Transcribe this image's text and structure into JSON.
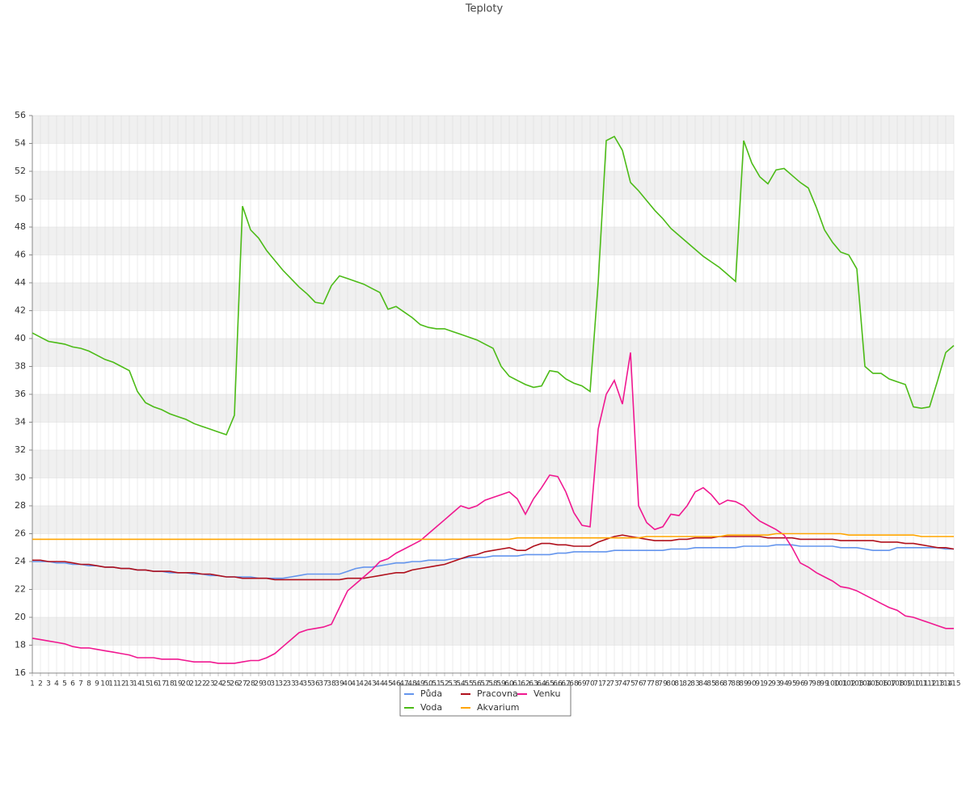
{
  "chart_data": {
    "type": "line",
    "title": "Teploty",
    "x": [
      1,
      2,
      3,
      4,
      5,
      6,
      7,
      8,
      9,
      10,
      11,
      12,
      13,
      14,
      15,
      16,
      17,
      18,
      19,
      20,
      21,
      22,
      23,
      24,
      25,
      26,
      27,
      28,
      29,
      30,
      31,
      32,
      33,
      34,
      35,
      36,
      37,
      38,
      39,
      40,
      41,
      42,
      43,
      44,
      45,
      46,
      47,
      48,
      49,
      50,
      51,
      52,
      53,
      54,
      55,
      56,
      57,
      58,
      59,
      60,
      61,
      62,
      63,
      64,
      65,
      66,
      67,
      68,
      69,
      70,
      71,
      72,
      73,
      74,
      75,
      76,
      77,
      78,
      79,
      80,
      81,
      82,
      83,
      84,
      85,
      86,
      87,
      88,
      89,
      90,
      91,
      92,
      93,
      94,
      95,
      96,
      97,
      98,
      99,
      100,
      101,
      102,
      103,
      104,
      105,
      106,
      107,
      108,
      109,
      110,
      111,
      112,
      113,
      114,
      115
    ],
    "xlim": [
      1,
      115
    ],
    "ylim": [
      16,
      56
    ],
    "yticks": [
      16,
      18,
      20,
      22,
      24,
      26,
      28,
      30,
      32,
      34,
      36,
      38,
      40,
      42,
      44,
      46,
      48,
      50,
      52,
      54,
      56
    ],
    "grid": true,
    "band_color": "#f0f0f0",
    "legend": "bottom",
    "series": [
      {
        "name": "Půda",
        "color": "#6495ed",
        "values": [
          24.0,
          24.0,
          24.0,
          23.9,
          23.9,
          23.8,
          23.8,
          23.7,
          23.7,
          23.6,
          23.6,
          23.5,
          23.5,
          23.4,
          23.4,
          23.3,
          23.3,
          23.2,
          23.2,
          23.2,
          23.1,
          23.1,
          23.0,
          23.0,
          22.9,
          22.9,
          22.9,
          22.9,
          22.8,
          22.8,
          22.8,
          22.8,
          22.9,
          23.0,
          23.1,
          23.1,
          23.1,
          23.1,
          23.1,
          23.3,
          23.5,
          23.6,
          23.6,
          23.7,
          23.8,
          23.9,
          23.9,
          24.0,
          24.0,
          24.1,
          24.1,
          24.1,
          24.2,
          24.2,
          24.3,
          24.3,
          24.3,
          24.4,
          24.4,
          24.4,
          24.4,
          24.5,
          24.5,
          24.5,
          24.5,
          24.6,
          24.6,
          24.7,
          24.7,
          24.7,
          24.7,
          24.7,
          24.8,
          24.8,
          24.8,
          24.8,
          24.8,
          24.8,
          24.8,
          24.9,
          24.9,
          24.9,
          25.0,
          25.0,
          25.0,
          25.0,
          25.0,
          25.0,
          25.1,
          25.1,
          25.1,
          25.1,
          25.2,
          25.2,
          25.2,
          25.1,
          25.1,
          25.1,
          25.1,
          25.1,
          25.0,
          25.0,
          25.0,
          24.9,
          24.8,
          24.8,
          24.8,
          25.0,
          25.0,
          25.0,
          25.0,
          25.0,
          25.0,
          24.9,
          24.9
        ]
      },
      {
        "name": "Pracovna",
        "color": "#b0101c",
        "values": [
          24.1,
          24.1,
          24.0,
          24.0,
          24.0,
          23.9,
          23.8,
          23.8,
          23.7,
          23.6,
          23.6,
          23.5,
          23.5,
          23.4,
          23.4,
          23.3,
          23.3,
          23.3,
          23.2,
          23.2,
          23.2,
          23.1,
          23.1,
          23.0,
          22.9,
          22.9,
          22.8,
          22.8,
          22.8,
          22.8,
          22.7,
          22.7,
          22.7,
          22.7,
          22.7,
          22.7,
          22.7,
          22.7,
          22.7,
          22.8,
          22.8,
          22.8,
          22.9,
          23.0,
          23.1,
          23.2,
          23.2,
          23.4,
          23.5,
          23.6,
          23.7,
          23.8,
          24.0,
          24.2,
          24.4,
          24.5,
          24.7,
          24.8,
          24.9,
          25.0,
          24.8,
          24.8,
          25.1,
          25.3,
          25.3,
          25.2,
          25.2,
          25.1,
          25.1,
          25.1,
          25.4,
          25.6,
          25.8,
          25.9,
          25.8,
          25.7,
          25.6,
          25.5,
          25.5,
          25.5,
          25.6,
          25.6,
          25.7,
          25.7,
          25.7,
          25.8,
          25.8,
          25.8,
          25.8,
          25.8,
          25.8,
          25.7,
          25.7,
          25.7,
          25.7,
          25.6,
          25.6,
          25.6,
          25.6,
          25.6,
          25.5,
          25.5,
          25.5,
          25.5,
          25.5,
          25.4,
          25.4,
          25.4,
          25.3,
          25.3,
          25.2,
          25.1,
          25.0,
          25.0,
          24.9
        ]
      },
      {
        "name": "Venku",
        "color": "#f01890",
        "values": [
          18.5,
          18.4,
          18.3,
          18.2,
          18.1,
          17.9,
          17.8,
          17.8,
          17.7,
          17.6,
          17.5,
          17.4,
          17.3,
          17.1,
          17.1,
          17.1,
          17.0,
          17.0,
          17.0,
          16.9,
          16.8,
          16.8,
          16.8,
          16.7,
          16.7,
          16.7,
          16.8,
          16.9,
          16.9,
          17.1,
          17.4,
          17.9,
          18.4,
          18.9,
          19.1,
          19.2,
          19.3,
          19.5,
          20.7,
          21.9,
          22.4,
          22.9,
          23.4,
          24.0,
          24.2,
          24.6,
          24.9,
          25.2,
          25.5,
          26.0,
          26.5,
          27.0,
          27.5,
          28.0,
          27.8,
          28.0,
          28.4,
          28.6,
          28.8,
          29.0,
          28.5,
          27.4,
          28.5,
          29.3,
          30.2,
          30.1,
          29.0,
          27.5,
          26.6,
          26.5,
          33.5,
          36.0,
          37.0,
          35.3,
          39.0,
          28.0,
          26.8,
          26.3,
          26.5,
          27.4,
          27.3,
          28.0,
          29.0,
          29.3,
          28.8,
          28.1,
          28.4,
          28.3,
          28.0,
          27.4,
          26.9,
          26.6,
          26.3,
          25.9,
          25.0,
          23.9,
          23.6,
          23.2,
          22.9,
          22.6,
          22.2,
          22.1,
          21.9,
          21.6,
          21.3,
          21.0,
          20.7,
          20.5,
          20.1,
          20.0,
          19.8,
          19.6,
          19.4,
          19.2,
          19.2
        ]
      },
      {
        "name": "Voda",
        "color": "#4cbb17",
        "values": [
          40.4,
          40.1,
          39.8,
          39.7,
          39.6,
          39.4,
          39.3,
          39.1,
          38.8,
          38.5,
          38.3,
          38.0,
          37.7,
          36.2,
          35.4,
          35.1,
          34.9,
          34.6,
          34.4,
          34.2,
          33.9,
          33.7,
          33.5,
          33.3,
          33.1,
          34.5,
          49.5,
          47.8,
          47.2,
          46.3,
          45.6,
          44.9,
          44.3,
          43.7,
          43.2,
          42.6,
          42.5,
          43.8,
          44.5,
          44.3,
          44.1,
          43.9,
          43.6,
          43.3,
          42.1,
          42.3,
          41.9,
          41.5,
          41.0,
          40.8,
          40.7,
          40.7,
          40.5,
          40.3,
          40.1,
          39.9,
          39.6,
          39.3,
          38.0,
          37.3,
          37.0,
          36.7,
          36.5,
          36.6,
          37.7,
          37.6,
          37.1,
          36.8,
          36.6,
          36.2,
          44.0,
          54.2,
          54.5,
          53.5,
          51.2,
          50.6,
          49.9,
          49.2,
          48.6,
          47.9,
          47.4,
          46.9,
          46.4,
          45.9,
          45.5,
          45.1,
          44.6,
          44.1,
          54.2,
          52.6,
          51.6,
          51.1,
          52.1,
          52.2,
          51.7,
          51.2,
          50.8,
          49.4,
          47.8,
          46.9,
          46.2,
          46.0,
          45.0,
          38.0,
          37.5,
          37.5,
          37.1,
          36.9,
          36.7,
          35.1,
          35.0,
          35.1,
          37.0,
          39.0,
          39.5
        ]
      },
      {
        "name": "Akvarium",
        "color": "#ffa500",
        "values": [
          25.6,
          25.6,
          25.6,
          25.6,
          25.6,
          25.6,
          25.6,
          25.6,
          25.6,
          25.6,
          25.6,
          25.6,
          25.6,
          25.6,
          25.6,
          25.6,
          25.6,
          25.6,
          25.6,
          25.6,
          25.6,
          25.6,
          25.6,
          25.6,
          25.6,
          25.6,
          25.6,
          25.6,
          25.6,
          25.6,
          25.6,
          25.6,
          25.6,
          25.6,
          25.6,
          25.6,
          25.6,
          25.6,
          25.6,
          25.6,
          25.6,
          25.6,
          25.6,
          25.6,
          25.6,
          25.6,
          25.6,
          25.6,
          25.6,
          25.6,
          25.6,
          25.6,
          25.6,
          25.6,
          25.6,
          25.6,
          25.6,
          25.6,
          25.6,
          25.6,
          25.7,
          25.7,
          25.7,
          25.7,
          25.7,
          25.7,
          25.7,
          25.7,
          25.7,
          25.7,
          25.7,
          25.7,
          25.7,
          25.7,
          25.7,
          25.7,
          25.8,
          25.8,
          25.8,
          25.8,
          25.8,
          25.8,
          25.8,
          25.8,
          25.8,
          25.8,
          25.9,
          25.9,
          25.9,
          25.9,
          25.9,
          25.9,
          26.0,
          26.0,
          26.0,
          26.0,
          26.0,
          26.0,
          26.0,
          26.0,
          26.0,
          25.9,
          25.9,
          25.9,
          25.9,
          25.9,
          25.9,
          25.9,
          25.9,
          25.9,
          25.8,
          25.8,
          25.8,
          25.8,
          25.8
        ]
      }
    ]
  }
}
